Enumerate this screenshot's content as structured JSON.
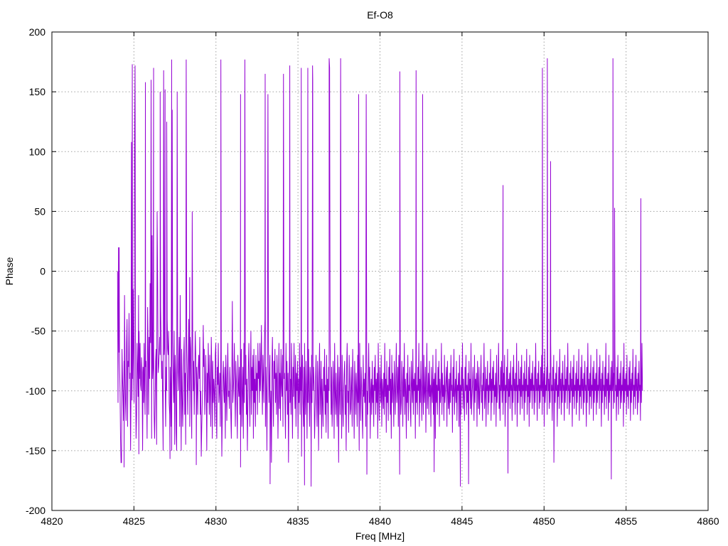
{
  "chart_data": {
    "type": "line",
    "title": "Ef-O8",
    "xlabel": "Freq [MHz]",
    "ylabel": "Phase",
    "xlim": [
      4820,
      4860
    ],
    "ylim": [
      -200,
      200
    ],
    "xticks": [
      4820,
      4825,
      4830,
      4835,
      4840,
      4845,
      4850,
      4855,
      4860
    ],
    "yticks": [
      -200,
      -150,
      -100,
      -50,
      0,
      50,
      100,
      150,
      200
    ],
    "xtick_labels": [
      "4820",
      "4825",
      "4830",
      "4835",
      "4840",
      "4845",
      "4850",
      "4855",
      "4860"
    ],
    "ytick_labels": [
      "-200",
      "-150",
      "-100",
      "-50",
      "0",
      "50",
      "100",
      "150",
      "200"
    ],
    "grid": true,
    "legend": "none",
    "line_color": "#9400d3",
    "series": [
      {
        "x_start": 4824.0,
        "x_end": 4856.0,
        "values": [
          0,
          -110,
          20,
          -68,
          -75,
          -100,
          -140,
          -160,
          -160,
          -65,
          -90,
          -105,
          -125,
          -75,
          -20,
          -85,
          -110,
          -125,
          -60,
          -40,
          -130,
          -75,
          -80,
          -35,
          -90,
          -85,
          -150,
          -100,
          -50,
          -108,
          -90,
          -15,
          -75,
          -110,
          108,
          172,
          -85,
          -140,
          -120,
          -60,
          -80,
          -105,
          -20,
          -50,
          -90,
          -60,
          -95,
          -100,
          -72,
          -85,
          -150,
          -80,
          -110,
          -60,
          -100,
          -120,
          -80,
          -75,
          -100,
          -140,
          -30,
          -65,
          -120,
          -55,
          -90,
          -10,
          -60,
          160,
          -140,
          30,
          -90,
          -80,
          -60,
          -120,
          -140,
          -110,
          -75,
          -65,
          -145,
          50,
          -10,
          -85,
          -80,
          -70,
          -55,
          -70,
          -30,
          -60,
          -90,
          -75,
          -110,
          -150,
          168,
          -70,
          -60,
          -90,
          -130,
          -80,
          -100,
          -40,
          -65,
          -70,
          -50,
          -110,
          -120,
          -80,
          -100,
          -130,
          -150,
          135,
          -60,
          -90,
          -110,
          -50,
          -145,
          -70,
          -85,
          -135,
          -150,
          150,
          -80,
          -100,
          -75,
          -55,
          -130,
          -20,
          -90,
          -150,
          -65,
          -100,
          -130,
          -105,
          -70,
          -55,
          -120,
          -85,
          -145,
          177,
          -60,
          -90,
          -120,
          -80,
          -40,
          -100,
          -130,
          -55,
          -65,
          -110,
          -140,
          50,
          -60,
          -100,
          -75,
          -120,
          -90,
          -50,
          -70,
          -100,
          -80,
          -95,
          -120,
          -80,
          -70,
          -90,
          -55,
          -120,
          -100,
          -155,
          -130,
          -110,
          -90,
          -45,
          -80,
          -65,
          -120,
          -100,
          -70,
          -95,
          -150,
          -85,
          -110,
          -60,
          -90,
          -120,
          -70,
          -100,
          -130,
          -55,
          -80,
          -140,
          -75,
          -110,
          -90,
          -100,
          -130,
          -70,
          -60,
          -120,
          -140,
          -80,
          -95,
          -60,
          -110,
          -100,
          -85,
          -130,
          -65,
          -90,
          -155,
          -120,
          -90,
          -75,
          -100,
          -110,
          -80,
          -140,
          -70,
          -95,
          -125,
          -90,
          -60,
          -105,
          -100,
          -115,
          -80,
          -95,
          -120,
          -140,
          -90,
          -25,
          -110,
          -100,
          -85,
          -60,
          -100,
          -130,
          -75,
          -90,
          -110,
          -140,
          -70,
          -95,
          -105,
          -80,
          -120,
          -100,
          -90,
          -65,
          -130,
          -100,
          -80,
          -140,
          -60,
          -110,
          177,
          -95,
          -70,
          -120,
          -90,
          -150,
          -110,
          -80,
          -60,
          -100,
          -130,
          -90,
          -50,
          -120,
          -80,
          -100,
          -70,
          -140,
          -65,
          -110,
          -90,
          -130,
          -70,
          -100,
          -85,
          -120,
          -60,
          -90,
          -75,
          -110,
          -60,
          -100,
          -80,
          -45,
          -95,
          -120,
          -70,
          -90,
          -110,
          -60,
          -40,
          -130,
          -80,
          -100,
          -150,
          -75,
          148,
          -60,
          -110,
          -90,
          -70,
          -120,
          -100,
          -160,
          -80,
          -55,
          -100,
          -130,
          -75,
          -90,
          -65,
          -110,
          -85,
          -120,
          -70,
          -90,
          -140,
          -100,
          -60,
          -115,
          -85,
          -125,
          -65,
          -95,
          -105,
          -70,
          -130,
          165,
          -90,
          -85,
          -110,
          -140,
          -60,
          -100,
          -75,
          -120,
          -85,
          -160,
          -95,
          -70,
          -110,
          -90,
          -120,
          -60,
          -100,
          -140,
          -80,
          -105,
          -60,
          -95,
          -115,
          -70,
          -130,
          -85,
          -100,
          -75,
          -140,
          -90,
          -110,
          -60,
          -120,
          -80,
          -100,
          -155,
          -90,
          -70,
          -110,
          -130,
          -80,
          -60,
          -100,
          -120,
          -75,
          -95,
          -140,
          -85,
          -110,
          -65,
          -100,
          -130,
          -80,
          -90,
          -145,
          -70,
          -110,
          172,
          -100,
          -80,
          -95,
          -140,
          -120,
          -90,
          -70,
          -110,
          -130,
          -75,
          -100,
          -150,
          -85,
          -60,
          -120,
          -100,
          -75,
          -140,
          -90,
          -110,
          -130,
          -80,
          -100,
          -65,
          -120,
          -95,
          -135,
          -70,
          -110,
          -90,
          -140,
          -80,
          -100,
          170,
          -60,
          -90,
          -120,
          -80,
          -130,
          -110,
          -75,
          -95,
          -140,
          -60,
          -100,
          -120,
          -85,
          -110,
          -130,
          -70,
          -95,
          -160,
          -80,
          -100,
          -120,
          178,
          -90,
          -140,
          -70,
          -110,
          -130,
          -100,
          -85,
          -75,
          -120,
          -95,
          -150,
          -80,
          -60,
          -110,
          -100,
          -135,
          -70,
          -90,
          -120,
          -115,
          -80,
          -100,
          -130,
          -65,
          -90,
          -110,
          -140,
          -75,
          -95,
          -120,
          -85,
          -100,
          -130,
          -70,
          -110,
          -90,
          -150,
          -60,
          -100,
          -125,
          -80,
          -95,
          -120,
          -140,
          -70,
          -105,
          -90,
          -110,
          -85,
          -130,
          148,
          -70,
          -100,
          -120,
          -90,
          -60,
          -110,
          -80,
          -140,
          -100,
          -90,
          -120,
          -75,
          -110,
          -95,
          -130,
          -80,
          -100,
          -70,
          -120,
          -90,
          -110,
          -85,
          -140,
          -60,
          -100,
          -125,
          -80,
          -95,
          -110,
          -70,
          -130,
          -90,
          -100,
          -115,
          -85,
          -120,
          -60,
          -105,
          -90,
          -135,
          -75,
          -110,
          -95,
          -125,
          -80,
          -100,
          -65,
          -120,
          -90,
          -140,
          -70,
          -110,
          -85,
          -100,
          -130,
          -75,
          -95,
          -120,
          -90,
          -60,
          -110,
          -100,
          -80,
          -130,
          -70,
          -100,
          167,
          -90,
          -120,
          -110,
          -75,
          -95,
          -130,
          -80,
          -105,
          -60,
          -120,
          -90,
          -100,
          -140,
          -85,
          -110,
          -70,
          -125,
          -95,
          -100,
          -80,
          -115,
          -130,
          -75,
          -95,
          -110,
          -65,
          -120,
          -90,
          -100,
          -85,
          -140,
          -70,
          -110,
          -95,
          -120,
          -80,
          -100,
          -60,
          -130,
          -90,
          -110,
          -75,
          -100,
          -125,
          -85,
          -95,
          -120,
          -70,
          -110,
          -100,
          -80,
          -135,
          -90,
          -60,
          -115,
          -100,
          -85,
          -120,
          -75,
          -105,
          -95,
          -130,
          -80,
          -100,
          -110,
          -70,
          -120,
          -90,
          -100,
          -85,
          -140,
          -65,
          -110,
          -95,
          -120,
          -80,
          -100,
          -75,
          -130,
          -90,
          -110,
          -100,
          -60,
          -120,
          -85,
          -105,
          -95,
          -125,
          -70,
          -110,
          -100,
          -90,
          -80,
          -130,
          -75,
          -100,
          -115,
          -90,
          -120,
          -85,
          -110,
          -70,
          -100,
          -95,
          -135,
          -80,
          -105,
          -65,
          -120,
          -100,
          -90,
          -110,
          -75,
          -125,
          -95,
          -100,
          -85,
          -130,
          -70,
          -110,
          -95,
          -120,
          -80,
          -100,
          -60,
          -115,
          -90,
          -105,
          -125,
          -80,
          -100,
          -70,
          -120,
          -95,
          -110,
          -85,
          -130,
          -75,
          -100,
          -90,
          -115,
          -60,
          -120,
          -105,
          -95,
          -80,
          -100,
          -125,
          -70,
          -110,
          -90,
          -100,
          -85,
          -130,
          -75,
          -95,
          -115,
          -80,
          -120,
          -100,
          -90,
          -70,
          -110,
          -95,
          -125,
          -85,
          -100,
          -60,
          -115,
          -105,
          -80,
          -130,
          -90,
          -100,
          -75,
          -120,
          -95,
          -110,
          -85,
          -100,
          -65,
          -125,
          -90,
          -110,
          -80,
          -100,
          -75,
          -120,
          -95,
          -105,
          -85,
          -130,
          -70,
          -110,
          -100,
          -90,
          -60,
          -115,
          -95,
          -125,
          -80,
          -100,
          -75,
          -110,
          -90,
          -120,
          -85,
          -100,
          -70,
          -130,
          -95,
          -110,
          -80,
          -100,
          -65,
          -120,
          -90,
          -105,
          -85,
          -115,
          -75,
          -100,
          -95,
          -125,
          -80,
          -110,
          -70,
          -100,
          -90,
          -120,
          -85,
          -100,
          -60,
          -130,
          -95,
          -110,
          -75,
          -100,
          -90,
          -120,
          -80,
          -105,
          -70,
          -115,
          -95,
          -100,
          -85,
          -125,
          -75,
          -110,
          -90,
          -100,
          -65,
          -120,
          -95,
          -105,
          -80,
          -130,
          -70,
          -110,
          -90,
          -100,
          -85,
          -115,
          -75,
          -100,
          -95,
          -120,
          -80,
          -110,
          -60,
          -100,
          -90,
          -125,
          -85,
          -100,
          -75,
          -115,
          -95,
          -110,
          -80,
          -100,
          -70,
          -120,
          -90,
          -105,
          -85,
          -130,
          -65,
          -110,
          -95,
          -100,
          -80,
          -120,
          -75,
          -100,
          -90,
          -115,
          -85,
          -110,
          -60,
          -100,
          -95,
          -125,
          -80,
          -100,
          -70,
          -120,
          -90,
          -110,
          -85,
          -100,
          -75,
          -130,
          -95,
          -105,
          -80,
          -115,
          -65,
          -100,
          -90,
          -120,
          -85,
          -110,
          -75,
          -100,
          -95,
          -125,
          -70,
          -110,
          -90,
          -100,
          -80,
          -115,
          -60,
          -100,
          -95,
          -120,
          -85,
          -110,
          -75,
          -100,
          -90,
          -130,
          -80,
          -105,
          -70,
          -115,
          -95,
          -100,
          -85,
          -120,
          -75,
          -110,
          -90,
          -100,
          -65,
          -125,
          -95,
          -105,
          -80,
          -115,
          -70,
          -100,
          -90,
          -120,
          -85,
          -110,
          -75,
          -100,
          -95,
          -130,
          -80,
          -110,
          -60,
          -100,
          -90,
          -120,
          -85,
          -105,
          -70,
          -115,
          -95,
          -100,
          -80,
          -125,
          -75,
          -110,
          -90,
          -100,
          -85,
          -120,
          -65,
          -110,
          -95,
          -100,
          -80,
          -115,
          -70,
          -100,
          -90,
          -130,
          -85,
          -110,
          -75,
          -100,
          -95,
          -120,
          -80,
          -105,
          -60,
          -115,
          -90,
          -100,
          -85,
          -125,
          -70,
          -110,
          -95,
          -100,
          -80,
          -120,
          -75,
          -100,
          -90,
          -115,
          -85,
          -110,
          -65,
          -100,
          -95,
          -125,
          -80,
          -105,
          -70,
          -120,
          -90,
          -100,
          -85,
          -115,
          -75,
          -110,
          -95,
          -100,
          -80,
          -130,
          -60,
          -110,
          -90,
          -100,
          -85,
          -120,
          -70,
          -105,
          -95,
          -115,
          -80,
          -100,
          -75,
          -125,
          -90,
          -110,
          -85,
          -100,
          -65,
          -120,
          -95,
          -105,
          -80,
          -115,
          -70,
          -100,
          -90,
          -120,
          -85,
          -110,
          -75,
          -100,
          -95,
          -125,
          -80,
          -110,
          -60,
          -100
        ],
        "peaks": [
          [
            4824.1,
            20
          ],
          [
            4824.85,
            108
          ],
          [
            4824.9,
            173
          ],
          [
            4825.7,
            158
          ],
          [
            4826.2,
            170
          ],
          [
            4826.6,
            150
          ],
          [
            4826.9,
            152
          ],
          [
            4827.0,
            125
          ],
          [
            4827.3,
            177
          ],
          [
            4828.4,
            -5
          ],
          [
            4830.3,
            177
          ],
          [
            4831.5,
            148
          ],
          [
            4833.0,
            165
          ],
          [
            4834.5,
            172
          ],
          [
            4835.2,
            170
          ],
          [
            4835.6,
            170
          ],
          [
            4835.9,
            160
          ],
          [
            4836.9,
            178
          ],
          [
            4838.7,
            148
          ],
          [
            4842.2,
            168
          ],
          [
            4842.6,
            148
          ],
          [
            4847.5,
            72
          ],
          [
            4849.9,
            170
          ],
          [
            4850.2,
            178
          ],
          [
            4850.4,
            92
          ],
          [
            4854.2,
            178
          ],
          [
            4854.3,
            53
          ],
          [
            4855.9,
            61
          ]
        ],
        "troughs": [
          [
            4824.4,
            -164
          ],
          [
            4825.3,
            -153
          ],
          [
            4827.2,
            -157
          ],
          [
            4828.8,
            -162
          ],
          [
            4831.5,
            -164
          ],
          [
            4833.3,
            -178
          ],
          [
            4835.4,
            -179
          ],
          [
            4835.8,
            -180
          ],
          [
            4839.2,
            -170
          ],
          [
            4841.2,
            -170
          ],
          [
            4843.3,
            -168
          ],
          [
            4844.9,
            -180
          ],
          [
            4845.4,
            -178
          ],
          [
            4847.8,
            -169
          ],
          [
            4850.6,
            -160
          ],
          [
            4854.1,
            -174
          ]
        ]
      }
    ]
  }
}
